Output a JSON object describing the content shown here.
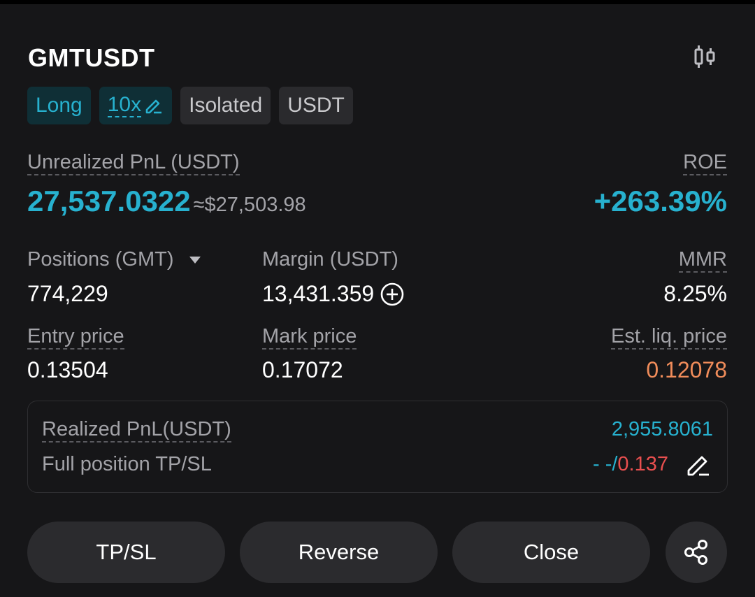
{
  "header": {
    "symbol": "GMTUSDT"
  },
  "tags": {
    "side": "Long",
    "leverage": "10x",
    "margin_mode": "Isolated",
    "settle": "USDT"
  },
  "pnl": {
    "label": "Unrealized PnL (USDT)",
    "value": "27,537.0322",
    "approx": "≈$27,503.98",
    "roe_label": "ROE",
    "roe_value": "+263.39%"
  },
  "stats": {
    "positions_label": "Positions (GMT)",
    "positions_value": "774,229",
    "margin_label": "Margin (USDT)",
    "margin_value": "13,431.359",
    "mmr_label": "MMR",
    "mmr_value": "8.25%",
    "entry_label": "Entry price",
    "entry_value": "0.13504",
    "mark_label": "Mark price",
    "mark_value": "0.17072",
    "liq_label": "Est. liq. price",
    "liq_value": "0.12078"
  },
  "realized": {
    "label": "Realized PnL(USDT)",
    "value": "2,955.8061",
    "tpsl_label": "Full position TP/SL",
    "tp_value": "- -/",
    "sl_value": "0.137"
  },
  "actions": {
    "tpsl": "TP/SL",
    "reverse": "Reverse",
    "close": "Close"
  },
  "colors": {
    "accent": "#27b1cf",
    "warning": "#f08c5a",
    "danger": "#e84f4f",
    "bg": "#161618"
  },
  "icons": [
    "chart-toggle-icon",
    "edit-icon",
    "caret-down-icon",
    "plus-circle-icon",
    "share-icon"
  ]
}
